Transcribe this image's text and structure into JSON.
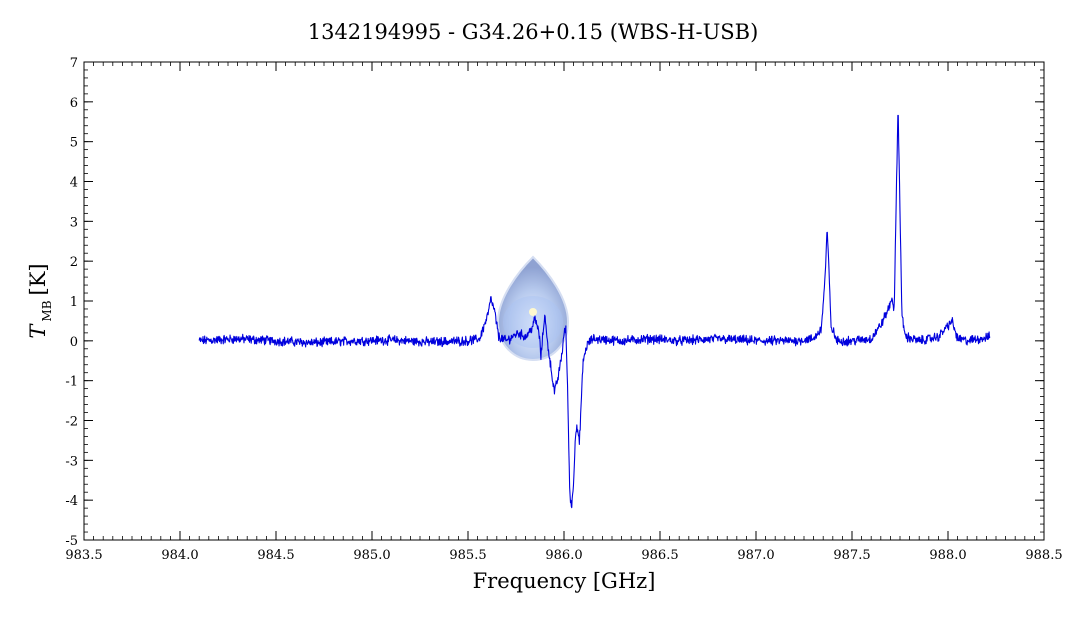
{
  "chart_data": {
    "type": "line",
    "title": "1342194995 - G34.26+0.15 (WBS-H-USB)",
    "xlabel": "Frequency [GHz]",
    "ylabel_main": "T",
    "ylabel_sub": "MB",
    "ylabel_unit": "[K]",
    "xlim": [
      983.5,
      988.5
    ],
    "ylim": [
      -5,
      7
    ],
    "x_ticks": [
      "983.5",
      "984.0",
      "984.5",
      "985.0",
      "985.5",
      "986.0",
      "986.5",
      "987.0",
      "987.5",
      "988.0",
      "988.5"
    ],
    "y_ticks": [
      "-5",
      "-4",
      "-3",
      "-2",
      "-1",
      "0",
      "1",
      "2",
      "3",
      "4",
      "5",
      "6",
      "7"
    ],
    "line_color": "#0000dd",
    "series": [
      {
        "points": [
          [
            984.1,
            0.0
          ],
          [
            984.3,
            0.05
          ],
          [
            984.5,
            0.0
          ],
          [
            984.7,
            -0.05
          ],
          [
            984.9,
            0.0
          ],
          [
            985.1,
            0.02
          ],
          [
            985.3,
            -0.03
          ],
          [
            985.5,
            0.0
          ],
          [
            985.56,
            0.05
          ],
          [
            985.6,
            0.6
          ],
          [
            985.62,
            1.05
          ],
          [
            985.64,
            0.7
          ],
          [
            985.66,
            0.1
          ],
          [
            985.7,
            0.0
          ],
          [
            985.76,
            0.2
          ],
          [
            985.8,
            0.1
          ],
          [
            985.83,
            0.3
          ],
          [
            985.85,
            0.55
          ],
          [
            985.87,
            0.2
          ],
          [
            985.88,
            -0.4
          ],
          [
            985.9,
            0.7
          ],
          [
            985.91,
            0.1
          ],
          [
            985.93,
            -0.6
          ],
          [
            985.95,
            -1.3
          ],
          [
            985.97,
            -0.9
          ],
          [
            985.99,
            -0.3
          ],
          [
            986.0,
            0.2
          ],
          [
            986.01,
            0.3
          ],
          [
            986.02,
            -1.5
          ],
          [
            986.03,
            -3.8
          ],
          [
            986.04,
            -4.2
          ],
          [
            986.05,
            -3.5
          ],
          [
            986.06,
            -2.3
          ],
          [
            986.07,
            -2.2
          ],
          [
            986.08,
            -2.6
          ],
          [
            986.09,
            -1.5
          ],
          [
            986.1,
            -0.5
          ],
          [
            986.12,
            -0.1
          ],
          [
            986.15,
            0.05
          ],
          [
            986.3,
            0.0
          ],
          [
            986.45,
            0.05
          ],
          [
            986.6,
            0.0
          ],
          [
            986.8,
            0.05
          ],
          [
            987.0,
            0.0
          ],
          [
            987.2,
            0.0
          ],
          [
            987.3,
            0.05
          ],
          [
            987.34,
            0.3
          ],
          [
            987.36,
            1.6
          ],
          [
            987.37,
            2.8
          ],
          [
            987.38,
            1.8
          ],
          [
            987.39,
            0.4
          ],
          [
            987.42,
            0.0
          ],
          [
            987.5,
            0.0
          ],
          [
            987.6,
            0.05
          ],
          [
            987.65,
            0.4
          ],
          [
            987.69,
            0.8
          ],
          [
            987.71,
            1.1
          ],
          [
            987.72,
            0.7
          ],
          [
            987.73,
            3.5
          ],
          [
            987.74,
            5.9
          ],
          [
            987.75,
            3.3
          ],
          [
            987.76,
            0.6
          ],
          [
            987.78,
            0.1
          ],
          [
            987.85,
            0.0
          ],
          [
            987.95,
            0.1
          ],
          [
            988.02,
            0.5
          ],
          [
            988.05,
            0.05
          ],
          [
            988.1,
            0.0
          ],
          [
            988.22,
            0.1
          ]
        ]
      }
    ]
  }
}
